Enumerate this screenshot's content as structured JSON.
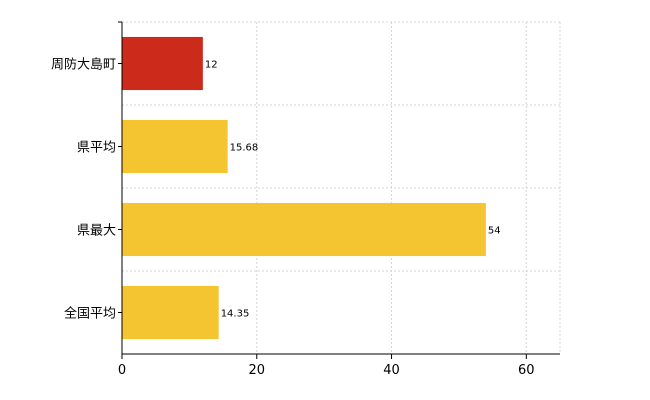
{
  "chart_data": {
    "type": "bar",
    "orientation": "horizontal",
    "categories": [
      "周防大島町",
      "県平均",
      "県最大",
      "全国平均"
    ],
    "values": [
      12,
      15.68,
      54,
      14.35
    ],
    "value_labels": [
      "12",
      "15.68",
      "54",
      "14.35"
    ],
    "colors": [
      "#cc2a1b",
      "#f5c431",
      "#f5c431",
      "#f5c431"
    ],
    "xlim": [
      0,
      65
    ],
    "xticks": [
      0,
      20,
      40,
      60
    ],
    "xtick_labels": [
      "0",
      "20",
      "40",
      "60"
    ],
    "grid": true,
    "title": "",
    "xlabel": "",
    "ylabel": ""
  }
}
